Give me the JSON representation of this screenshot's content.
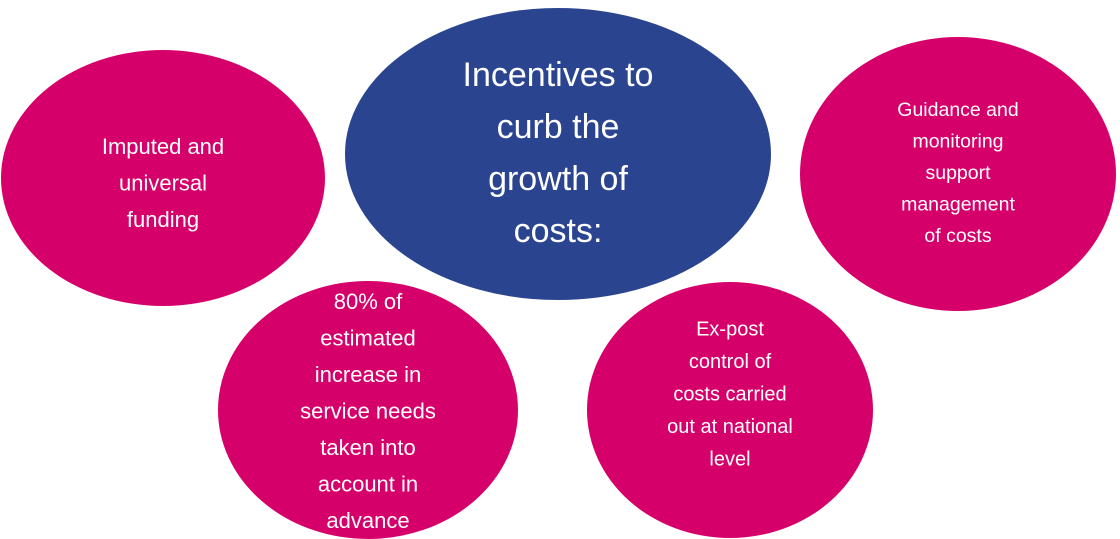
{
  "nodes": [
    {
      "lines": [
        "Imputed and",
        "universal",
        "funding"
      ]
    },
    {
      "lines": [
        "Incentives to",
        "curb the",
        "growth of",
        "costs:"
      ]
    },
    {
      "lines": [
        "Guidance and",
        "monitoring",
        "support",
        "management",
        "of costs"
      ]
    },
    {
      "lines": [
        "80% of",
        "estimated",
        "increase in",
        "service needs",
        "taken into",
        "account in",
        "advance"
      ]
    },
    {
      "lines": [
        "Ex-post",
        "control of",
        "costs carried",
        "out at national",
        "level"
      ]
    }
  ]
}
